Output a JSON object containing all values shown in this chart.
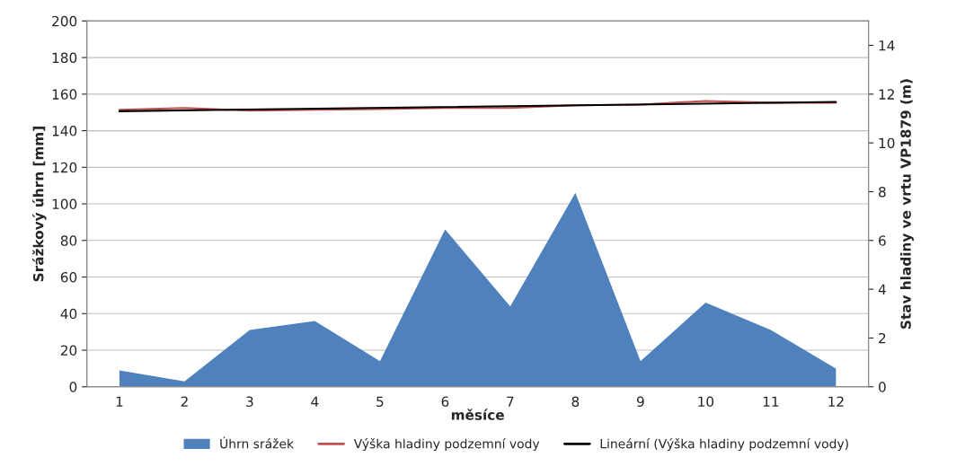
{
  "chart_data": {
    "type": "area",
    "xlabel": "měsíce",
    "ylabel": "Srážkový úhrn [mm]",
    "y2label": "Stav hladiny ve vrtu VP1879 (m)",
    "x": [
      1,
      2,
      3,
      4,
      5,
      6,
      7,
      8,
      9,
      10,
      11,
      12
    ],
    "xlim": [
      0.5,
      12.5
    ],
    "xticks": [
      1,
      2,
      3,
      4,
      5,
      6,
      7,
      8,
      9,
      10,
      11,
      12
    ],
    "ylim": [
      0,
      200
    ],
    "yticks": [
      0,
      20,
      40,
      60,
      80,
      100,
      120,
      140,
      160,
      180,
      200
    ],
    "y2lim": [
      0,
      15
    ],
    "y2ticks": [
      0,
      2,
      4,
      6,
      8,
      10,
      12,
      14
    ],
    "grid": "y",
    "legend": "bottom",
    "series": [
      {
        "name": "Úhrn srážek",
        "color": "#4f81bd",
        "values": [
          9,
          3,
          31,
          36,
          14,
          86,
          44,
          106,
          14,
          46,
          31,
          10
        ]
      },
      {
        "name": "Výška hladiny podzemní vody",
        "type": "line",
        "axis": "y2",
        "color": "#c0504d",
        "values": [
          11.36,
          11.43,
          11.32,
          11.36,
          11.39,
          11.43,
          11.43,
          11.54,
          11.57,
          11.72,
          11.65,
          11.65
        ]
      },
      {
        "name": "Lineární (Výška hladiny podzemní vody)",
        "type": "line",
        "axis": "y2",
        "color": "#000000",
        "x": [
          1,
          12
        ],
        "values": [
          11.3,
          11.68
        ]
      }
    ]
  }
}
